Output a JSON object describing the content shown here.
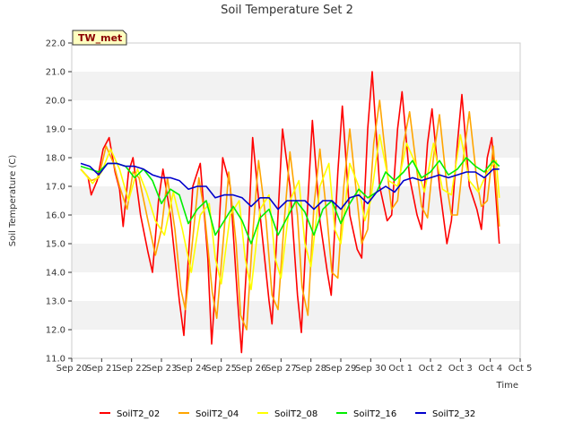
{
  "chart_data": {
    "type": "line",
    "title": "Soil Temperature Set 2",
    "xlabel": "Time",
    "ylabel": "Soil Temperature (C)",
    "site_label": "TW_met",
    "ylim": [
      11.0,
      22.0
    ],
    "yticks": [
      "11.0",
      "12.0",
      "13.0",
      "14.0",
      "15.0",
      "16.0",
      "17.0",
      "18.0",
      "19.0",
      "20.0",
      "21.0",
      "22.0"
    ],
    "xlim": [
      0,
      15
    ],
    "xticks": [
      "Sep 20",
      "Sep 21",
      "Sep 22",
      "Sep 23",
      "Sep 24",
      "Sep 25",
      "Sep 26",
      "Sep 27",
      "Sep 28",
      "Sep 29",
      "Sep 30",
      "Oct 1",
      "Oct 2",
      "Oct 3",
      "Oct 4",
      "Oct 5"
    ],
    "grid": "horizontal bands",
    "legend_position": "bottom",
    "series": [
      {
        "name": "SoilT2_02",
        "color": "#ff0000",
        "x": [
          0.3,
          0.55,
          0.65,
          0.85,
          1.05,
          1.25,
          1.45,
          1.6,
          1.72,
          1.9,
          2.05,
          2.3,
          2.55,
          2.7,
          2.9,
          3.05,
          3.3,
          3.6,
          3.75,
          3.9,
          4.05,
          4.3,
          4.55,
          4.68,
          4.9,
          5.05,
          5.3,
          5.55,
          5.68,
          5.9,
          6.05,
          6.3,
          6.6,
          6.7,
          6.9,
          7.05,
          7.3,
          7.55,
          7.68,
          7.9,
          8.05,
          8.3,
          8.55,
          8.68,
          8.9,
          9.05,
          9.3,
          9.55,
          9.7,
          9.9,
          10.05,
          10.3,
          10.55,
          10.7,
          10.9,
          11.05,
          11.3,
          11.55,
          11.7,
          11.9,
          12.05,
          12.3,
          12.55,
          12.7,
          12.9,
          13.05,
          13.3,
          13.55,
          13.7,
          13.9,
          14.05,
          14.3
        ],
        "y": [
          17.6,
          17.3,
          16.7,
          17.2,
          18.3,
          18.7,
          17.5,
          16.9,
          15.6,
          17.5,
          18.0,
          16.0,
          14.7,
          14.0,
          16.5,
          17.6,
          16.0,
          13.0,
          11.8,
          14.5,
          17.0,
          17.8,
          14.5,
          11.5,
          15.0,
          18.0,
          17.0,
          13.0,
          11.2,
          15.2,
          18.7,
          16.0,
          13.0,
          12.2,
          16.0,
          19.0,
          17.0,
          13.2,
          11.9,
          16.5,
          19.3,
          15.8,
          14.0,
          13.2,
          17.5,
          19.8,
          16.0,
          14.8,
          14.5,
          19.0,
          21.0,
          17.0,
          15.8,
          16.0,
          19.0,
          20.3,
          17.3,
          16.0,
          15.5,
          18.5,
          19.7,
          17.0,
          15.0,
          15.8,
          18.5,
          20.2,
          17.0,
          16.2,
          15.5,
          18.0,
          18.7,
          15.0
        ]
      },
      {
        "name": "SoilT2_04",
        "color": "#ffa500",
        "x": [
          0.3,
          0.65,
          0.9,
          1.15,
          1.4,
          1.6,
          1.85,
          2.05,
          2.25,
          2.55,
          2.8,
          3.0,
          3.2,
          3.45,
          3.65,
          3.8,
          4.05,
          4.25,
          4.45,
          4.7,
          4.85,
          5.1,
          5.25,
          5.5,
          5.65,
          5.85,
          6.05,
          6.25,
          6.5,
          6.7,
          6.9,
          7.1,
          7.3,
          7.55,
          7.7,
          7.9,
          8.1,
          8.3,
          8.55,
          8.7,
          8.9,
          9.1,
          9.3,
          9.55,
          9.7,
          9.9,
          10.1,
          10.3,
          10.55,
          10.7,
          10.9,
          11.1,
          11.3,
          11.55,
          11.7,
          11.9,
          12.1,
          12.3,
          12.55,
          12.7,
          12.9,
          13.1,
          13.3,
          13.55,
          13.7,
          13.9,
          14.1,
          14.3
        ],
        "y": [
          17.6,
          17.2,
          17.3,
          18.4,
          17.8,
          17.0,
          16.2,
          17.5,
          17.3,
          15.8,
          14.6,
          15.5,
          17.3,
          15.5,
          13.4,
          12.7,
          15.2,
          17.3,
          16.0,
          13.3,
          12.4,
          15.5,
          17.5,
          15.0,
          12.5,
          12.0,
          15.3,
          17.9,
          15.8,
          13.2,
          12.7,
          15.7,
          18.2,
          16.0,
          13.5,
          12.5,
          16.3,
          18.3,
          15.8,
          14.0,
          13.8,
          17.0,
          19.0,
          16.5,
          15.0,
          15.5,
          18.5,
          20.0,
          17.5,
          16.2,
          16.5,
          18.5,
          19.6,
          17.5,
          16.3,
          15.9,
          18.0,
          19.5,
          17.0,
          16.0,
          16.0,
          18.0,
          19.6,
          17.2,
          16.3,
          16.5,
          18.4,
          15.6
        ]
      },
      {
        "name": "SoilT2_08",
        "color": "#ffff00",
        "x": [
          0.3,
          0.7,
          1.0,
          1.3,
          1.6,
          1.9,
          2.2,
          2.5,
          2.8,
          3.1,
          3.4,
          3.7,
          4.0,
          4.3,
          4.6,
          4.8,
          5.0,
          5.3,
          5.6,
          5.8,
          6.0,
          6.3,
          6.6,
          6.8,
          7.0,
          7.3,
          7.6,
          7.8,
          8.0,
          8.3,
          8.6,
          8.8,
          9.0,
          9.3,
          9.6,
          9.8,
          10.0,
          10.3,
          10.6,
          10.9,
          11.2,
          11.5,
          11.8,
          12.1,
          12.4,
          12.7,
          13.0,
          13.3,
          13.6,
          13.9,
          14.2,
          14.3
        ],
        "y": [
          17.6,
          17.1,
          17.5,
          18.3,
          17.6,
          16.5,
          17.6,
          16.8,
          15.8,
          15.3,
          16.8,
          15.5,
          14.0,
          16.0,
          16.4,
          14.5,
          13.6,
          16.0,
          16.5,
          14.5,
          13.4,
          16.2,
          16.7,
          14.5,
          13.8,
          16.5,
          17.2,
          15.0,
          14.2,
          17.0,
          17.8,
          15.5,
          15.0,
          17.8,
          17.0,
          15.8,
          16.5,
          18.8,
          17.2,
          17.0,
          18.5,
          17.8,
          16.8,
          18.5,
          16.9,
          16.7,
          18.8,
          17.2,
          16.8,
          17.5,
          17.9,
          16.6
        ]
      },
      {
        "name": "SoilT2_16",
        "color": "#00ee00",
        "x": [
          0.3,
          0.6,
          0.9,
          1.2,
          1.5,
          1.8,
          2.1,
          2.4,
          2.7,
          3.0,
          3.3,
          3.6,
          3.9,
          4.2,
          4.5,
          4.8,
          5.1,
          5.4,
          5.7,
          6.0,
          6.3,
          6.6,
          6.9,
          7.2,
          7.5,
          7.8,
          8.1,
          8.4,
          8.7,
          9.0,
          9.3,
          9.6,
          9.9,
          10.2,
          10.5,
          10.8,
          11.1,
          11.4,
          11.7,
          12.0,
          12.3,
          12.6,
          12.9,
          13.2,
          13.5,
          13.8,
          14.1,
          14.3
        ],
        "y": [
          17.7,
          17.6,
          17.5,
          17.8,
          17.8,
          17.7,
          17.3,
          17.6,
          17.2,
          16.4,
          16.9,
          16.7,
          15.7,
          16.2,
          16.5,
          15.3,
          15.8,
          16.3,
          15.8,
          15.0,
          15.9,
          16.2,
          15.3,
          15.9,
          16.5,
          16.1,
          15.3,
          16.2,
          16.5,
          15.7,
          16.4,
          16.9,
          16.6,
          16.8,
          17.5,
          17.2,
          17.5,
          17.9,
          17.3,
          17.5,
          17.9,
          17.4,
          17.6,
          18.0,
          17.7,
          17.5,
          17.9,
          17.7
        ]
      },
      {
        "name": "SoilT2_32",
        "color": "#0000cc",
        "x": [
          0.3,
          0.6,
          0.9,
          1.2,
          1.5,
          1.8,
          2.1,
          2.4,
          2.7,
          3.0,
          3.3,
          3.6,
          3.9,
          4.2,
          4.5,
          4.8,
          5.1,
          5.4,
          5.7,
          6.0,
          6.3,
          6.6,
          6.9,
          7.2,
          7.5,
          7.8,
          8.1,
          8.4,
          8.7,
          9.0,
          9.3,
          9.6,
          9.9,
          10.2,
          10.5,
          10.8,
          11.1,
          11.4,
          11.7,
          12.0,
          12.3,
          12.6,
          12.9,
          13.2,
          13.5,
          13.8,
          14.1,
          14.3
        ],
        "y": [
          17.8,
          17.7,
          17.4,
          17.8,
          17.8,
          17.7,
          17.7,
          17.6,
          17.4,
          17.3,
          17.3,
          17.2,
          16.9,
          17.0,
          17.0,
          16.6,
          16.7,
          16.7,
          16.6,
          16.3,
          16.6,
          16.6,
          16.2,
          16.5,
          16.5,
          16.5,
          16.2,
          16.5,
          16.5,
          16.2,
          16.6,
          16.7,
          16.4,
          16.8,
          17.0,
          16.8,
          17.2,
          17.3,
          17.2,
          17.3,
          17.4,
          17.3,
          17.4,
          17.5,
          17.5,
          17.3,
          17.6,
          17.6
        ]
      }
    ]
  }
}
